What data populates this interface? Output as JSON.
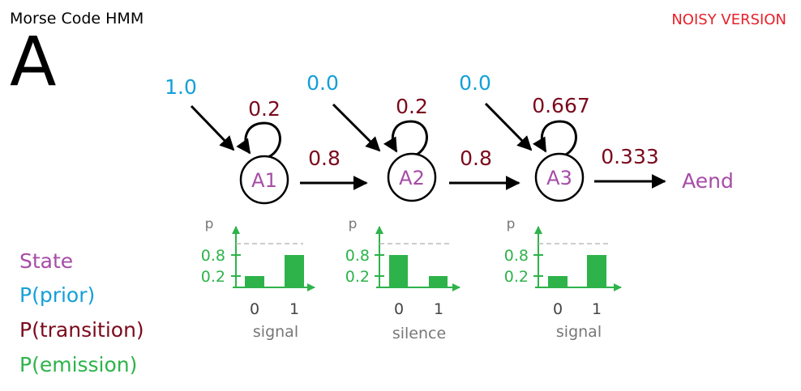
{
  "title": "Morse Code HMM",
  "letter": "A",
  "version_label": "NOISY VERSION",
  "colors": {
    "state": "#a64ca6",
    "prior": "#14a0d8",
    "transition": "#7b0a1c",
    "emission": "#2db34a",
    "noisy": "#e8202a",
    "dashed": "#bbbbbb"
  },
  "states": [
    {
      "label": "A1",
      "prior": "1.0",
      "self_transition": "0.2",
      "next_transition": "0.8",
      "emission": {
        "ylabel": "p",
        "ticks": [
          "0.8",
          "0.2"
        ],
        "categories": [
          "0",
          "1"
        ],
        "values": [
          0.2,
          0.8
        ],
        "xlabel": "signal"
      }
    },
    {
      "label": "A2",
      "prior": "0.0",
      "self_transition": "0.2",
      "next_transition": "0.8",
      "emission": {
        "ylabel": "p",
        "ticks": [
          "0.8",
          "0.2"
        ],
        "categories": [
          "0",
          "1"
        ],
        "values": [
          0.8,
          0.2
        ],
        "xlabel": "silence"
      }
    },
    {
      "label": "A3",
      "prior": "0.0",
      "self_transition": "0.667",
      "next_transition": "0.333",
      "emission": {
        "ylabel": "p",
        "ticks": [
          "0.8",
          "0.2"
        ],
        "categories": [
          "0",
          "1"
        ],
        "values": [
          0.2,
          0.8
        ],
        "xlabel": "signal"
      }
    }
  ],
  "end_state": "Aend",
  "legend": {
    "state": "State",
    "prior": "P(prior)",
    "transition": "P(transition)",
    "emission": "P(emission)"
  }
}
